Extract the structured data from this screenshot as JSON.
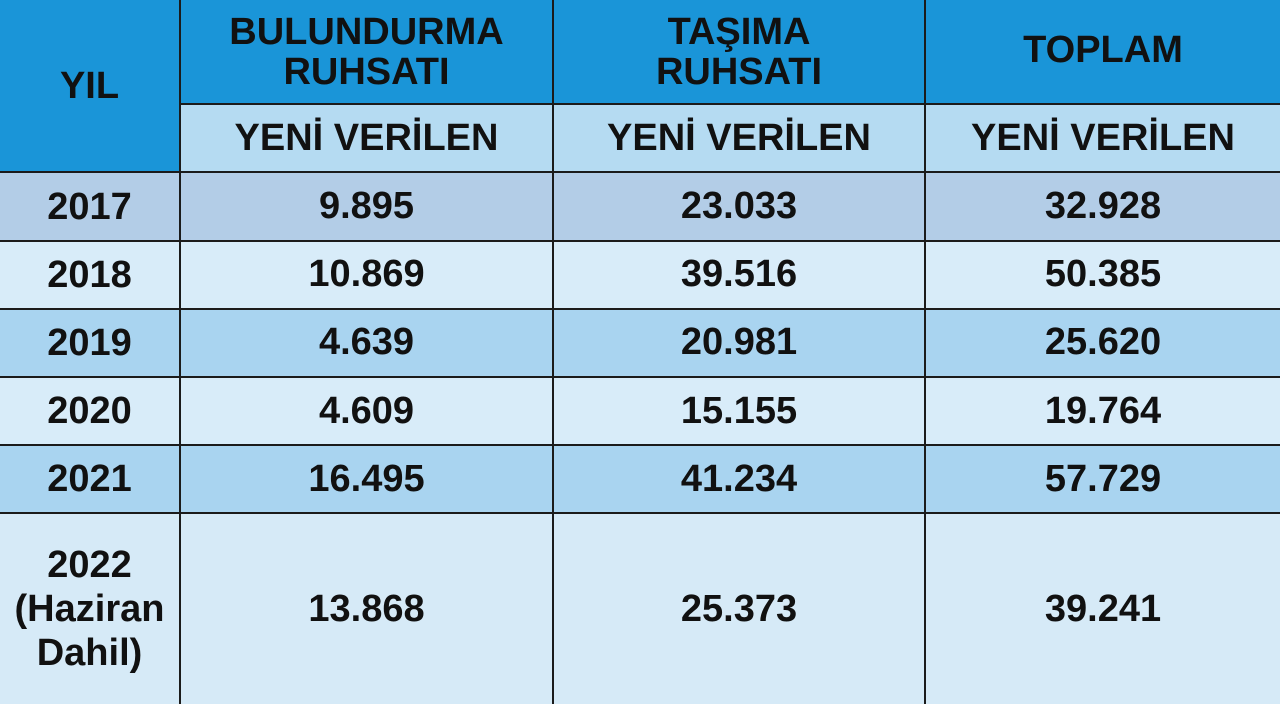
{
  "chart_data": {
    "type": "table",
    "columns": {
      "year": "YIL",
      "groups": [
        {
          "title": "BULUNDURMA RUHSATI",
          "line1": "BULUNDURMA",
          "line2": "RUHSATI",
          "sub": "YENİ VERİLEN"
        },
        {
          "title": "TAŞIMA RUHSATI",
          "line1": "TAŞIMA",
          "line2": "RUHSATI",
          "sub": "YENİ VERİLEN"
        },
        {
          "title": "TOPLAM",
          "line1": "TOPLAM",
          "line2": "",
          "sub": "YENİ VERİLEN"
        }
      ]
    },
    "rows": [
      {
        "year": "2017",
        "year_note": "",
        "values": [
          "9.895",
          "23.033",
          "32.928"
        ]
      },
      {
        "year": "2018",
        "year_note": "",
        "values": [
          "10.869",
          "39.516",
          "50.385"
        ]
      },
      {
        "year": "2019",
        "year_note": "",
        "values": [
          "4.639",
          "20.981",
          "25.620"
        ]
      },
      {
        "year": "2020",
        "year_note": "",
        "values": [
          "4.609",
          "15.155",
          "19.764"
        ]
      },
      {
        "year": "2021",
        "year_note": "",
        "values": [
          "16.495",
          "41.234",
          "57.729"
        ]
      },
      {
        "year": "2022",
        "year_note": "(Haziran Dahil)",
        "values": [
          "13.868",
          "25.373",
          "39.241"
        ]
      }
    ]
  },
  "colors": {
    "header": "#1a95d8",
    "subheader": "#b5dbf2",
    "row_dark": "#a9d4f0",
    "row_light": "#d8ecf9",
    "row_2017": "#b3cde7"
  }
}
